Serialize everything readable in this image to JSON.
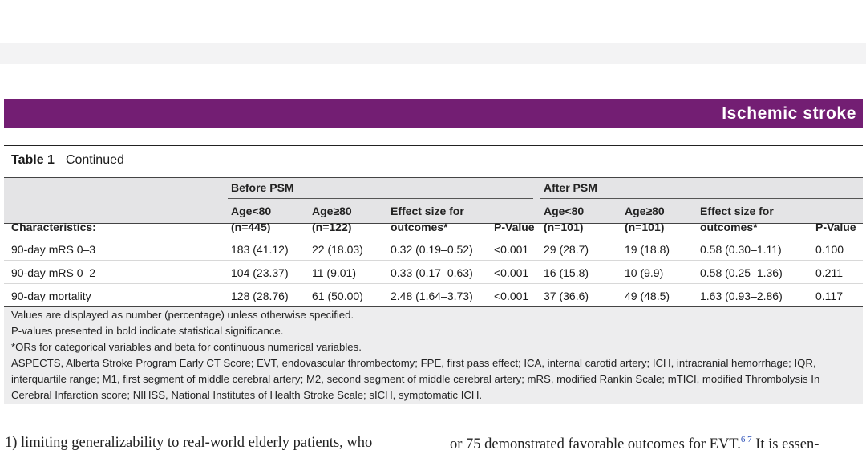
{
  "header": {
    "section_title": "Ischemic stroke"
  },
  "table": {
    "caption_label": "Table 1",
    "caption_text": "Continued",
    "group_before": "Before PSM",
    "group_after": "After PSM",
    "col_characteristics": "Characteristics:",
    "columns": [
      {
        "line1": "Age<80",
        "line2": "(n=445)"
      },
      {
        "line1": "Age≥80",
        "line2": "(n=122)"
      },
      {
        "line1": "Effect size for",
        "line2": "outcomes*"
      },
      {
        "line1": "",
        "line2": "P-Value"
      },
      {
        "line1": "Age<80",
        "line2": "(n=101)"
      },
      {
        "line1": "Age≥80",
        "line2": "(n=101)"
      },
      {
        "line1": "Effect size for",
        "line2": "outcomes*"
      },
      {
        "line1": "",
        "line2": "P-Value"
      }
    ],
    "rows": [
      [
        "90-day mRS 0–3",
        "183 (41.12)",
        "22 (18.03)",
        "0.32 (0.19–0.52)",
        "<0.001",
        "29 (28.7)",
        "19 (18.8)",
        "0.58 (0.30–1.11)",
        "0.100"
      ],
      [
        "90-day mRS 0–2",
        "104 (23.37)",
        "11 (9.01)",
        "0.33 (0.17–0.63)",
        "<0.001",
        "16 (15.8)",
        "10 (9.9)",
        "0.58 (0.25–1.36)",
        "0.211"
      ],
      [
        "90-day mortality",
        "128 (28.76)",
        "61 (50.00)",
        "2.48 (1.64–3.73)",
        "<0.001",
        "37 (36.6)",
        "49 (48.5)",
        "1.63 (0.93–2.86)",
        "0.117"
      ]
    ],
    "notes": [
      "Values are displayed as number (percentage) unless otherwise specified.",
      "P-values presented in bold indicate statistical significance.",
      "*ORs for categorical variables and beta for continuous numerical variables.",
      "ASPECTS, Alberta Stroke Program Early CT Score; EVT, endovascular thrombectomy; FPE, first pass effect; ICA, internal carotid artery; ICH, intracranial hemorrhage; IQR,",
      "interquartile range; M1, first segment of middle cerebral artery; M2, second segment of middle cerebral artery; mRS, modified Rankin Scale; mTICI, modified Thrombolysis In",
      "Cerebral Infarction score; NIHSS, National Institutes of Health Stroke Scale; sICH, symptomatic ICH."
    ]
  },
  "body": {
    "left_line": "1) limiting generalizability to real-world elderly patients, who",
    "right_line_a": "or 75 demonstrated favorable outcomes for EVT.",
    "right_refs": "6 7",
    "right_line_b": " It is essen-"
  }
}
